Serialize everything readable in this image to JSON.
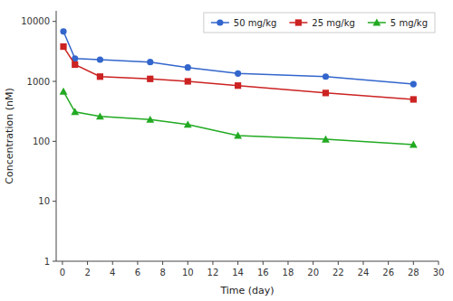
{
  "chart_data": {
    "type": "line",
    "xlabel": "Time (day)",
    "ylabel": "Concentration (nM)",
    "x": [
      0.08,
      1.0,
      3.0,
      7.0,
      10.0,
      14.0,
      21.0,
      28.0
    ],
    "xlim": [
      -0.5,
      30
    ],
    "xticks": [
      0,
      2,
      4,
      6,
      8,
      10,
      12,
      14,
      16,
      18,
      20,
      22,
      24,
      26,
      28,
      30
    ],
    "ylim": [
      1,
      15000
    ],
    "yticks": [
      1,
      10,
      100,
      1000,
      10000
    ],
    "log": "y",
    "grid": false,
    "legend": "upper right",
    "series": [
      {
        "name": "50 mg/kg",
        "color": "#3366CC",
        "marker": "circle",
        "values": [
          6800,
          2400,
          2300,
          2100,
          1700,
          1350,
          1200,
          900
        ]
      },
      {
        "name": "25 mg/kg",
        "color": "#CC2222",
        "marker": "square",
        "values": [
          3800,
          1900,
          1200,
          1100,
          1000,
          850,
          640,
          500
        ]
      },
      {
        "name": "5 mg/kg",
        "color": "#22AA22",
        "marker": "triangle",
        "values": [
          680,
          310,
          260,
          230,
          190,
          125,
          108,
          88
        ]
      }
    ]
  }
}
